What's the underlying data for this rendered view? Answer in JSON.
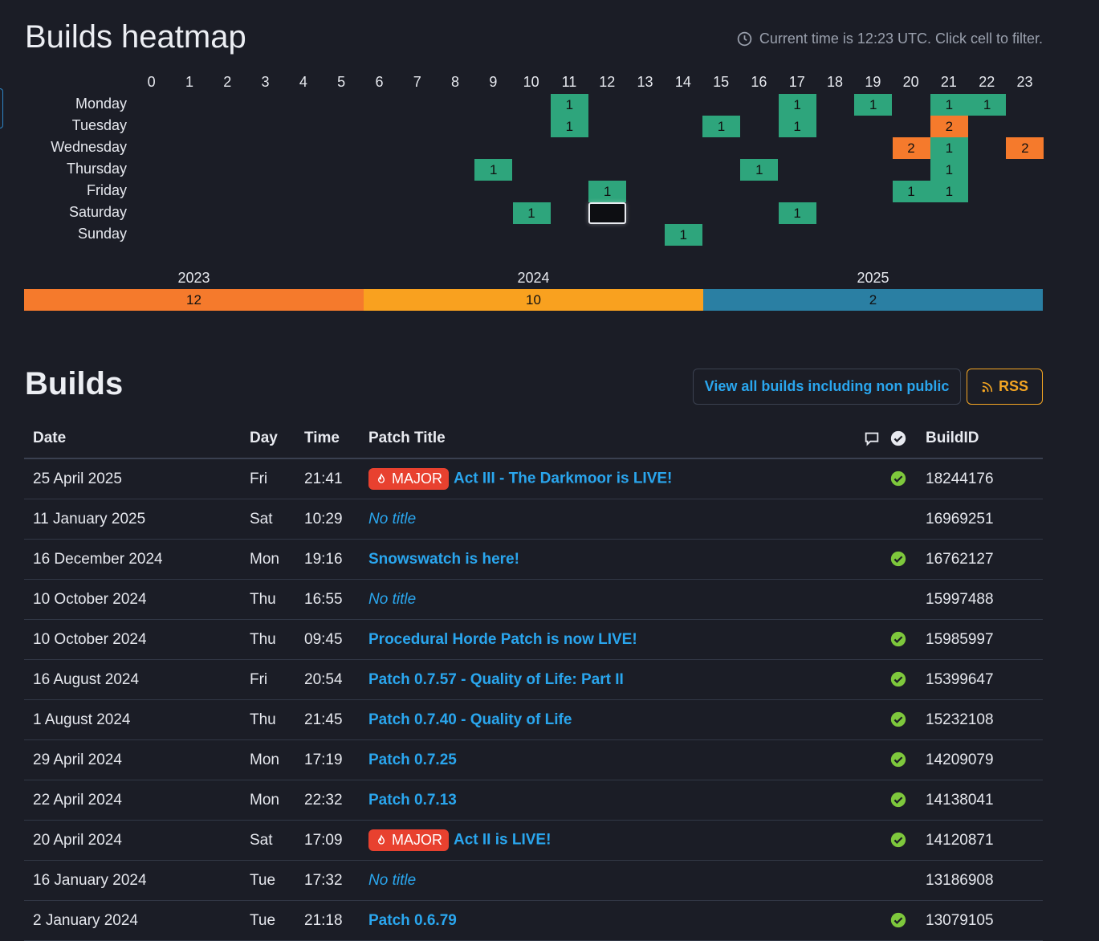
{
  "heatmap": {
    "title": "Builds heatmap",
    "current_time_note": "Current time is 12:23 UTC. Click cell to filter.",
    "hours": [
      "0",
      "1",
      "2",
      "3",
      "4",
      "5",
      "6",
      "7",
      "8",
      "9",
      "10",
      "11",
      "12",
      "13",
      "14",
      "15",
      "16",
      "17",
      "18",
      "19",
      "20",
      "21",
      "22",
      "23"
    ],
    "days": [
      "Monday",
      "Tuesday",
      "Wednesday",
      "Thursday",
      "Friday",
      "Saturday",
      "Sunday"
    ],
    "cells": [
      {
        "day": 0,
        "hour": 11,
        "count": "1",
        "color": "#2ea57c"
      },
      {
        "day": 0,
        "hour": 17,
        "count": "1",
        "color": "#2ea57c"
      },
      {
        "day": 0,
        "hour": 19,
        "count": "1",
        "color": "#2ea57c"
      },
      {
        "day": 0,
        "hour": 21,
        "count": "1",
        "color": "#2ea57c"
      },
      {
        "day": 0,
        "hour": 22,
        "count": "1",
        "color": "#2ea57c"
      },
      {
        "day": 1,
        "hour": 11,
        "count": "1",
        "color": "#2ea57c"
      },
      {
        "day": 1,
        "hour": 15,
        "count": "1",
        "color": "#2ea57c"
      },
      {
        "day": 1,
        "hour": 17,
        "count": "1",
        "color": "#2ea57c"
      },
      {
        "day": 1,
        "hour": 21,
        "count": "2",
        "color": "#f57a2c"
      },
      {
        "day": 2,
        "hour": 20,
        "count": "2",
        "color": "#f57a2c"
      },
      {
        "day": 2,
        "hour": 21,
        "count": "1",
        "color": "#2ea57c"
      },
      {
        "day": 2,
        "hour": 23,
        "count": "2",
        "color": "#f57a2c"
      },
      {
        "day": 3,
        "hour": 9,
        "count": "1",
        "color": "#2ea57c"
      },
      {
        "day": 3,
        "hour": 16,
        "count": "1",
        "color": "#2ea57c"
      },
      {
        "day": 3,
        "hour": 21,
        "count": "1",
        "color": "#2ea57c"
      },
      {
        "day": 4,
        "hour": 12,
        "count": "1",
        "color": "#2ea57c"
      },
      {
        "day": 4,
        "hour": 20,
        "count": "1",
        "color": "#2ea57c"
      },
      {
        "day": 4,
        "hour": 21,
        "count": "1",
        "color": "#2ea57c"
      },
      {
        "day": 5,
        "hour": 10,
        "count": "1",
        "color": "#2ea57c"
      },
      {
        "day": 5,
        "hour": 12,
        "count": "",
        "selected": true
      },
      {
        "day": 5,
        "hour": 17,
        "count": "1",
        "color": "#2ea57c"
      },
      {
        "day": 6,
        "hour": 14,
        "count": "1",
        "color": "#2ea57c"
      }
    ],
    "years": [
      {
        "year": "2023",
        "count": "12",
        "color": "#f57a2c"
      },
      {
        "year": "2024",
        "count": "10",
        "color": "#f9a11f"
      },
      {
        "year": "2025",
        "count": "2",
        "color": "#2a7fa3"
      }
    ]
  },
  "builds": {
    "title": "Builds",
    "view_all_label": "View all builds including non public",
    "rss_label": "RSS",
    "columns": {
      "date": "Date",
      "day": "Day",
      "time": "Time",
      "patch_title": "Patch Title",
      "buildid": "BuildID"
    },
    "major_label": "MAJOR",
    "rows": [
      {
        "date": "25 April 2025",
        "day": "Fri",
        "time": "21:41",
        "title": "Act III - The Darkmoor is LIVE!",
        "major": true,
        "notitle": false,
        "verified": true,
        "buildid": "18244176"
      },
      {
        "date": "11 January 2025",
        "day": "Sat",
        "time": "10:29",
        "title": "No title",
        "major": false,
        "notitle": true,
        "verified": false,
        "buildid": "16969251"
      },
      {
        "date": "16 December 2024",
        "day": "Mon",
        "time": "19:16",
        "title": "Snowswatch is here!",
        "major": false,
        "notitle": false,
        "verified": true,
        "buildid": "16762127"
      },
      {
        "date": "10 October 2024",
        "day": "Thu",
        "time": "16:55",
        "title": "No title",
        "major": false,
        "notitle": true,
        "verified": false,
        "buildid": "15997488"
      },
      {
        "date": "10 October 2024",
        "day": "Thu",
        "time": "09:45",
        "title": "Procedural Horde Patch is now LIVE!",
        "major": false,
        "notitle": false,
        "verified": true,
        "buildid": "15985997"
      },
      {
        "date": "16 August 2024",
        "day": "Fri",
        "time": "20:54",
        "title": "Patch 0.7.57 - Quality of Life: Part II",
        "major": false,
        "notitle": false,
        "verified": true,
        "buildid": "15399647"
      },
      {
        "date": "1 August 2024",
        "day": "Thu",
        "time": "21:45",
        "title": "Patch 0.7.40 - Quality of Life",
        "major": false,
        "notitle": false,
        "verified": true,
        "buildid": "15232108"
      },
      {
        "date": "29 April 2024",
        "day": "Mon",
        "time": "17:19",
        "title": "Patch 0.7.25",
        "major": false,
        "notitle": false,
        "verified": true,
        "buildid": "14209079"
      },
      {
        "date": "22 April 2024",
        "day": "Mon",
        "time": "22:32",
        "title": "Patch 0.7.13",
        "major": false,
        "notitle": false,
        "verified": true,
        "buildid": "14138041"
      },
      {
        "date": "20 April 2024",
        "day": "Sat",
        "time": "17:09",
        "title": "Act II is LIVE!",
        "major": true,
        "notitle": false,
        "verified": true,
        "buildid": "14120871"
      },
      {
        "date": "16 January 2024",
        "day": "Tue",
        "time": "17:32",
        "title": "No title",
        "major": false,
        "notitle": true,
        "verified": false,
        "buildid": "13186908"
      },
      {
        "date": "2 January 2024",
        "day": "Tue",
        "time": "21:18",
        "title": "Patch 0.6.79",
        "major": false,
        "notitle": false,
        "verified": true,
        "buildid": "13079105"
      }
    ]
  }
}
